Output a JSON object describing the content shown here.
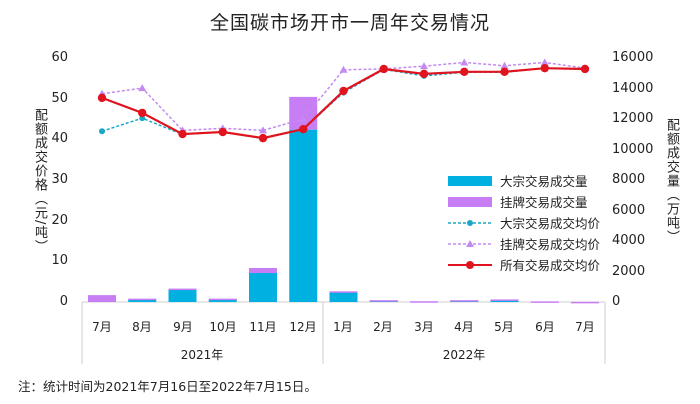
{
  "title": "全国碳市场开市一周年交易情况",
  "note": "注：统计时间为2021年7月16日至2022年7月15日。",
  "axes": {
    "left_label": "配额成交价格（元/吨）",
    "right_label": "配额成交量（万吨）",
    "left_ticks": [
      "0",
      "10",
      "20",
      "30",
      "40",
      "50",
      "60"
    ],
    "right_ticks": [
      "0",
      "2000",
      "4000",
      "6000",
      "8000",
      "10000",
      "12000",
      "14000",
      "16000"
    ]
  },
  "x_categories": [
    "7月",
    "8月",
    "9月",
    "10月",
    "11月",
    "12月",
    "1月",
    "2月",
    "3月",
    "4月",
    "5月",
    "6月",
    "7月"
  ],
  "year_groups": [
    {
      "label": "2021年"
    },
    {
      "label": "2022年"
    }
  ],
  "legend": [
    {
      "label": "大宗交易成交量",
      "type": "bar",
      "color": "#00B0E0"
    },
    {
      "label": "挂牌交易成交量",
      "type": "bar",
      "color": "#C77DF3"
    },
    {
      "label": "大宗交易成交均价",
      "type": "dashed-dot",
      "color": "#1AA7C8"
    },
    {
      "label": "挂牌交易成交均价",
      "type": "dashed-triangle",
      "color": "#C48AF0"
    },
    {
      "label": "所有交易成交均价",
      "type": "solid-dot",
      "color": "#E0141E"
    }
  ],
  "chart_data": {
    "type": "bar+line",
    "title": "全国碳市场开市一周年交易情况",
    "xlabel": "",
    "ylabel": "配额成交价格（元/吨）",
    "y2label": "配额成交量（万吨）",
    "ylim": [
      0,
      60
    ],
    "y2lim": [
      0,
      16000
    ],
    "categories": [
      "2021-7月",
      "2021-8月",
      "2021-9月",
      "2021-10月",
      "2021-11月",
      "2021-12月",
      "2022-1月",
      "2022-2月",
      "2022-3月",
      "2022-4月",
      "2022-5月",
      "2022-6月",
      "2022-7月"
    ],
    "series": [
      {
        "name": "大宗交易成交量",
        "type": "bar",
        "axis": "right",
        "stack": "volume",
        "values": [
          0,
          200,
          850,
          200,
          1900,
          11300,
          650,
          100,
          0,
          100,
          150,
          0,
          0
        ]
      },
      {
        "name": "挂牌交易成交量",
        "type": "bar",
        "axis": "right",
        "stack": "volume",
        "values": [
          450,
          20,
          30,
          20,
          330,
          2150,
          50,
          20,
          50,
          20,
          20,
          40,
          10
        ]
      },
      {
        "name": "大宗交易成交均价",
        "type": "line",
        "axis": "left",
        "values": [
          42.0,
          45.2,
          41.2,
          41.8,
          40.2,
          42.5,
          51.5,
          57.2,
          55.6,
          56.5,
          56.5,
          57.5,
          57.2
        ]
      },
      {
        "name": "挂牌交易成交均价",
        "type": "line",
        "axis": "left",
        "values": [
          51.2,
          52.6,
          42.2,
          42.7,
          42.2,
          45.0,
          57.1,
          57.3,
          58.0,
          58.9,
          58.1,
          58.9,
          57.5
        ]
      },
      {
        "name": "所有交易成交均价",
        "type": "line",
        "axis": "left",
        "values": [
          50.2,
          46.5,
          41.3,
          41.8,
          40.3,
          42.5,
          51.9,
          57.3,
          56.1,
          56.6,
          56.6,
          57.5,
          57.3
        ]
      }
    ],
    "legend_position": "right-inside",
    "grid": false
  }
}
